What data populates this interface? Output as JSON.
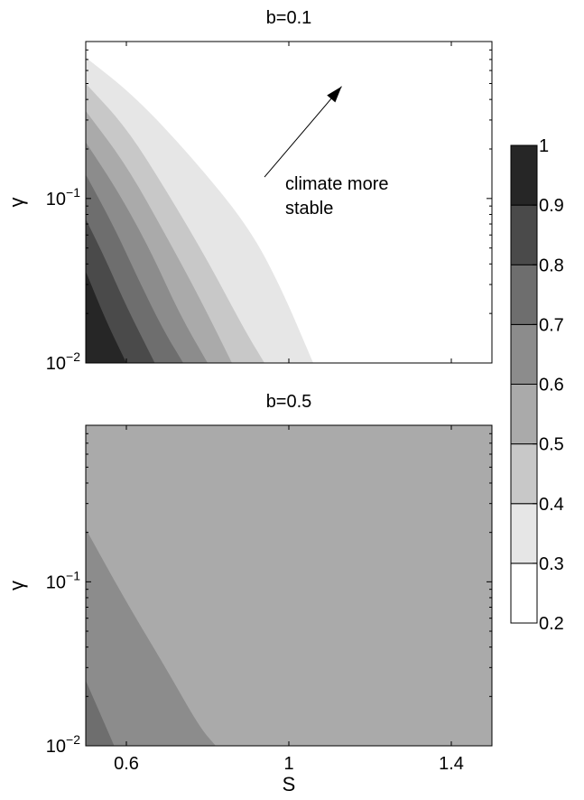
{
  "chart_data": [
    {
      "type": "heatmap",
      "title": "b=0.1",
      "xlabel": "",
      "ylabel": "γ",
      "xscale": "linear",
      "yscale": "log",
      "xlim": [
        0.5,
        1.5
      ],
      "ylim": [
        0.01,
        0.9
      ],
      "x_ticks": [
        0.6,
        1.0,
        1.4
      ],
      "x_tick_labels": [
        "",
        "",
        ""
      ],
      "y_ticks": [
        0.01,
        0.1
      ],
      "y_tick_labels": [
        {
          "base": "10",
          "exp": "−2"
        },
        {
          "base": "10",
          "exp": "−1"
        }
      ],
      "levels": [
        0.3,
        0.4,
        0.5,
        0.6,
        0.7,
        0.8,
        0.9
      ],
      "level_boundaries": [
        {
          "level": 0.3,
          "points": [
            [
              0.5,
              0.72
            ],
            [
              0.62,
              0.42
            ],
            [
              0.76,
              0.18
            ],
            [
              0.9,
              0.068
            ],
            [
              0.98,
              0.029
            ],
            [
              1.06,
              0.01
            ]
          ]
        },
        {
          "level": 0.4,
          "points": [
            [
              0.5,
              0.5
            ],
            [
              0.6,
              0.27
            ],
            [
              0.7,
              0.11
            ],
            [
              0.8,
              0.042
            ],
            [
              0.89,
              0.016
            ],
            [
              0.94,
              0.01
            ]
          ]
        },
        {
          "level": 0.5,
          "points": [
            [
              0.5,
              0.34
            ],
            [
              0.6,
              0.16
            ],
            [
              0.7,
              0.058
            ],
            [
              0.78,
              0.025
            ],
            [
              0.86,
              0.01
            ]
          ]
        },
        {
          "level": 0.6,
          "points": [
            [
              0.5,
              0.22
            ],
            [
              0.58,
              0.11
            ],
            [
              0.66,
              0.048
            ],
            [
              0.73,
              0.02
            ],
            [
              0.8,
              0.01
            ]
          ]
        },
        {
          "level": 0.7,
          "points": [
            [
              0.5,
              0.14
            ],
            [
              0.57,
              0.067
            ],
            [
              0.63,
              0.032
            ],
            [
              0.69,
              0.016
            ],
            [
              0.74,
              0.01
            ]
          ]
        },
        {
          "level": 0.8,
          "points": [
            [
              0.5,
              0.075
            ],
            [
              0.55,
              0.042
            ],
            [
              0.6,
              0.022
            ],
            [
              0.67,
              0.01
            ]
          ]
        },
        {
          "level": 0.9,
          "points": [
            [
              0.5,
              0.036
            ],
            [
              0.55,
              0.018
            ],
            [
              0.6,
              0.01
            ]
          ]
        }
      ],
      "annotation": {
        "lines": [
          "climate more",
          "stable"
        ],
        "arrow_from": [
          0.94,
          0.135
        ],
        "arrow_to": [
          1.13,
          0.48
        ]
      }
    },
    {
      "type": "heatmap",
      "title": "b=0.5",
      "xlabel": "S",
      "ylabel": "γ",
      "xscale": "linear",
      "yscale": "log",
      "xlim": [
        0.5,
        1.5
      ],
      "ylim": [
        0.01,
        0.9
      ],
      "x_ticks": [
        0.6,
        1.0,
        1.4
      ],
      "x_tick_labels": [
        "0.6",
        "1",
        "1.4"
      ],
      "y_ticks": [
        0.01,
        0.1
      ],
      "y_tick_labels": [
        {
          "base": "10",
          "exp": "−2"
        },
        {
          "base": "10",
          "exp": "−1"
        }
      ],
      "background_level": 0.55,
      "level_boundaries": [
        {
          "level": 0.6,
          "points": [
            [
              0.5,
              0.21
            ],
            [
              0.6,
              0.075
            ],
            [
              0.7,
              0.029
            ],
            [
              0.78,
              0.013
            ],
            [
              0.82,
              0.01
            ]
          ]
        },
        {
          "level": 0.7,
          "points": [
            [
              0.5,
              0.025
            ],
            [
              0.55,
              0.013
            ],
            [
              0.57,
              0.01
            ]
          ]
        }
      ]
    }
  ],
  "colorbar": {
    "levels": [
      0.2,
      0.3,
      0.4,
      0.5,
      0.6,
      0.7,
      0.8,
      0.9,
      1
    ],
    "tick_labels": [
      "0.2",
      "0.3",
      "0.4",
      "0.5",
      "0.6",
      "0.7",
      "0.8",
      "0.9",
      "1"
    ],
    "band_colors": [
      "#ffffff",
      "#e6e6e6",
      "#c8c8c8",
      "#aaaaaa",
      "#8c8c8c",
      "#6e6e6e",
      "#4a4a4a",
      "#262626"
    ]
  }
}
